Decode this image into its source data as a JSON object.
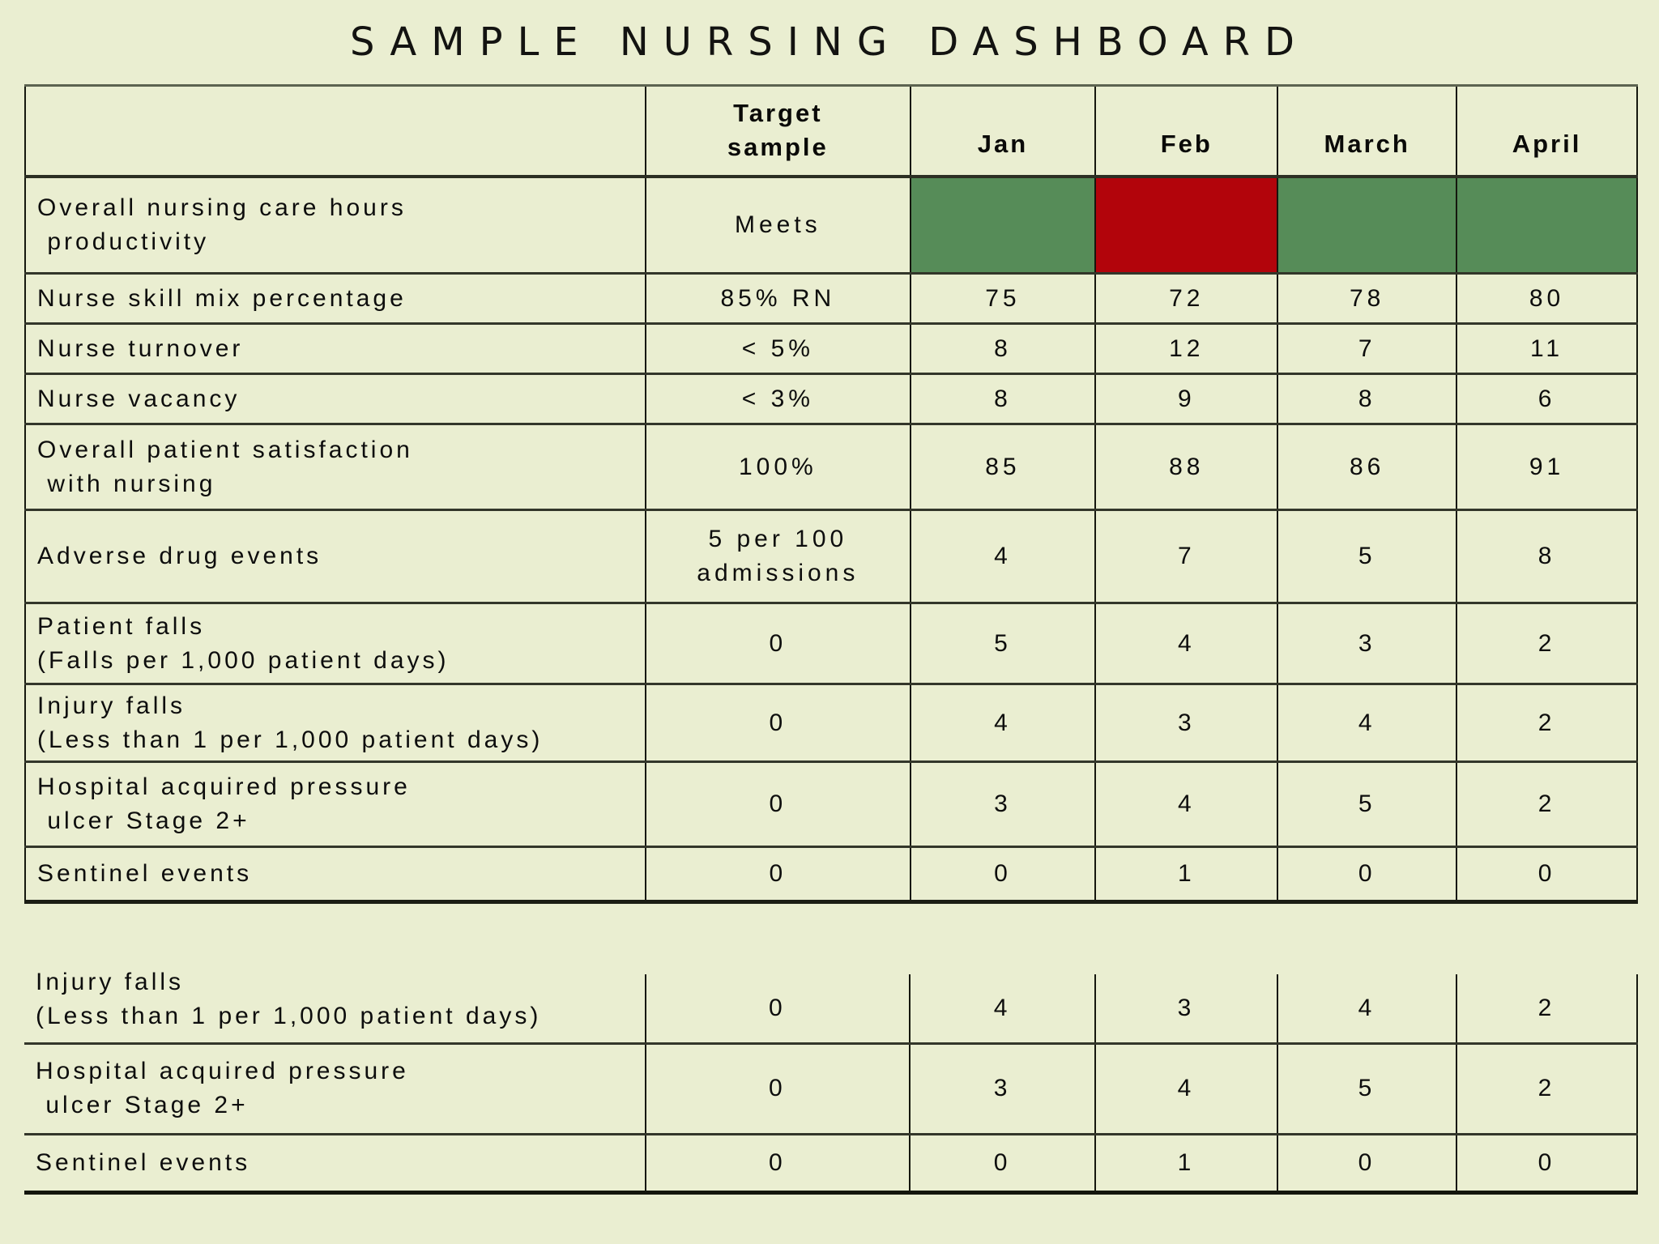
{
  "page": {
    "title": "SAMPLE NURSING DASHBOARD",
    "background": "#eaeed1"
  },
  "colors": {
    "meets_green": "#568c58",
    "missed_red": "#b2040b",
    "grid_line": "#15170e",
    "text": "#0d0d0d"
  },
  "chart_data": {
    "type": "table",
    "title": "SAMPLE NURSING DASHBOARD",
    "columns": [
      "",
      "Target\nsample",
      "Jan",
      "Feb",
      "March",
      "April"
    ],
    "rows": [
      {
        "label": "Overall nursing care hours\n productivity",
        "target": "Meets",
        "values": [
          "",
          "",
          "",
          ""
        ],
        "status": [
          "meets",
          "missed",
          "meets",
          "meets"
        ]
      },
      {
        "label": "Nurse skill mix percentage",
        "target": "85% RN",
        "values": [
          "75",
          "72",
          "78",
          "80"
        ]
      },
      {
        "label": "Nurse turnover",
        "target": "< 5%",
        "values": [
          "8",
          "12",
          "7",
          "11"
        ]
      },
      {
        "label": "Nurse vacancy",
        "target": "< 3%",
        "values": [
          "8",
          "9",
          "8",
          "6"
        ]
      },
      {
        "label": "Overall patient satisfaction\n with nursing",
        "target": "100%",
        "values": [
          "85",
          "88",
          "86",
          "91"
        ]
      },
      {
        "label": "Adverse drug events",
        "target": "5 per 100\nadmissions",
        "values": [
          "4",
          "7",
          "5",
          "8"
        ]
      },
      {
        "label": "Patient falls\n(Falls per 1,000 patient days)",
        "target": "0",
        "values": [
          "5",
          "4",
          "3",
          "2"
        ]
      },
      {
        "label": "Injury falls\n(Less than 1 per 1,000 patient days)",
        "target": "0",
        "values": [
          "4",
          "3",
          "4",
          "2"
        ]
      },
      {
        "label": "Hospital acquired pressure\n ulcer Stage 2+",
        "target": "0",
        "values": [
          "3",
          "4",
          "5",
          "2"
        ]
      },
      {
        "label": "Sentinel events",
        "target": "0",
        "values": [
          "0",
          "1",
          "0",
          "0"
        ]
      }
    ],
    "lower_repeat_rows": [
      {
        "label": "Injury falls\n(Less than 1 per 1,000 patient days)",
        "target": "0",
        "values": [
          "4",
          "3",
          "4",
          "2"
        ],
        "clipped": true
      },
      {
        "label": "Hospital acquired pressure\n ulcer Stage 2+",
        "target": "0",
        "values": [
          "3",
          "4",
          "5",
          "2"
        ]
      },
      {
        "label": "Sentinel events",
        "target": "0",
        "values": [
          "0",
          "1",
          "0",
          "0"
        ]
      }
    ]
  }
}
